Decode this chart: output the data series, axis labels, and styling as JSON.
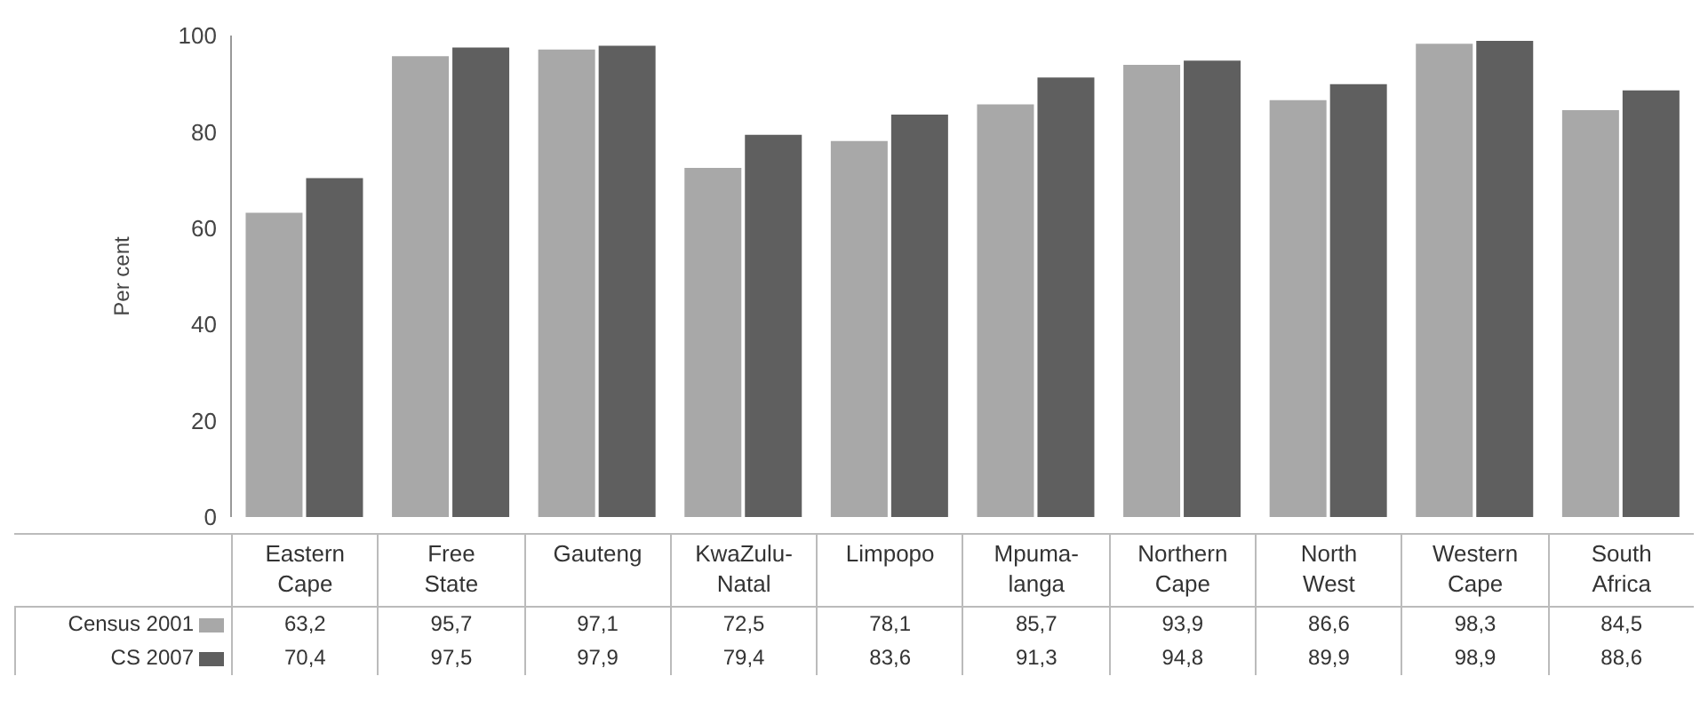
{
  "chart_data": {
    "type": "bar",
    "ylabel": "Per cent",
    "categories": [
      "Eastern Cape",
      "Free State",
      "Gauteng",
      "KwaZulu-Natal",
      "Limpopo",
      "Mpuma-langa",
      "Northern Cape",
      "North West",
      "Western Cape",
      "South Africa"
    ],
    "series": [
      {
        "name": "Census 2001",
        "color": "#a8a8a8",
        "values": [
          63.2,
          95.7,
          97.1,
          72.5,
          78.1,
          85.7,
          93.9,
          86.6,
          98.3,
          84.5
        ],
        "value_labels": [
          "63,2",
          "95,7",
          "97,1",
          "72,5",
          "78,1",
          "85,7",
          "93,9",
          "86,6",
          "98,3",
          "84,5"
        ]
      },
      {
        "name": "CS 2007",
        "color": "#5f5f5f",
        "values": [
          70.4,
          97.5,
          97.9,
          79.4,
          83.6,
          91.3,
          94.8,
          89.9,
          98.9,
          88.6
        ],
        "value_labels": [
          "70,4",
          "97,5",
          "97,9",
          "79,4",
          "83,6",
          "91,3",
          "94,8",
          "89,9",
          "98,9",
          "88,6"
        ]
      }
    ],
    "ylim": [
      0,
      100
    ],
    "yticks": [
      0,
      20,
      40,
      60,
      80,
      100
    ],
    "grid": false,
    "legend": "bottom left"
  }
}
